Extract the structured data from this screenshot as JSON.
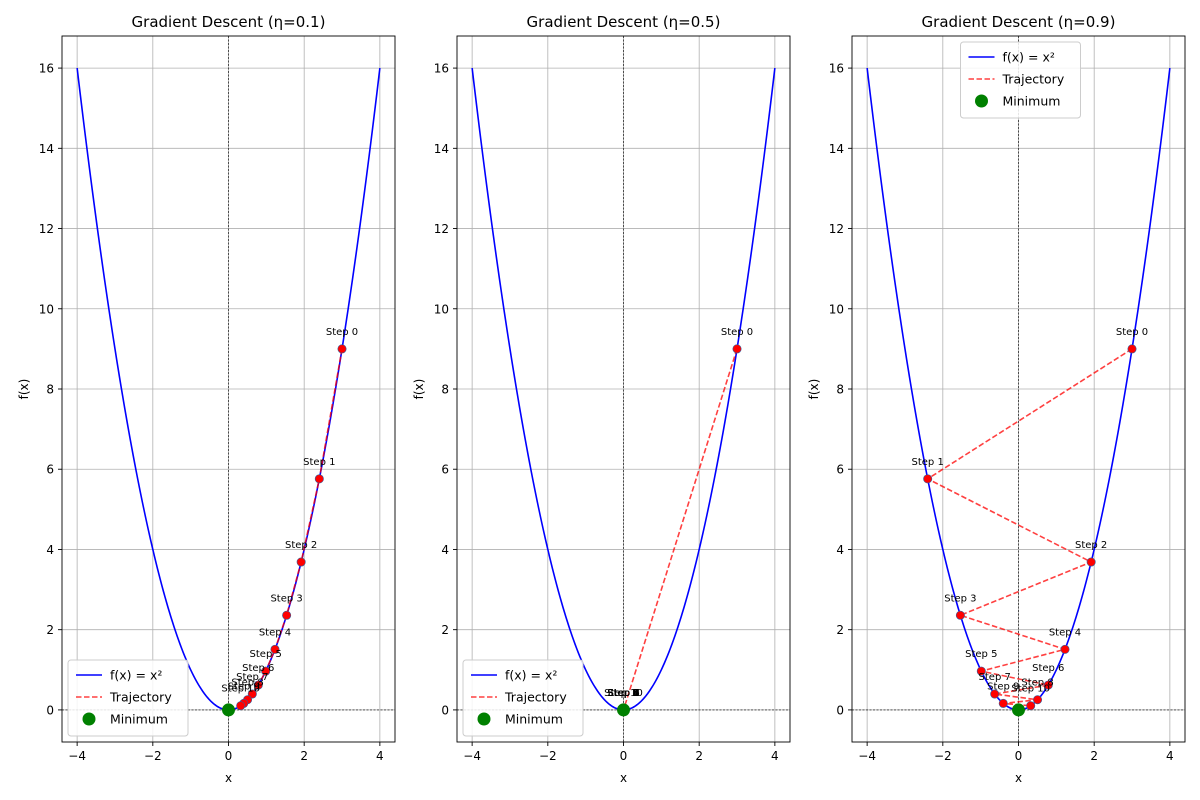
{
  "figure": {
    "background": "#ffffff"
  },
  "chart_data": [
    {
      "type": "line",
      "title": "Gradient Descent (η=0.1)",
      "xlabel": "x",
      "ylabel": "f(x)",
      "xlim": [
        -4.4,
        4.4
      ],
      "ylim": [
        -0.8,
        16.8
      ],
      "xticks": [
        -4,
        -2,
        0,
        2,
        4
      ],
      "yticks": [
        0,
        2,
        4,
        6,
        8,
        10,
        12,
        14,
        16
      ],
      "grid": true,
      "legend_position": "lower-left",
      "learning_rate": 0.1,
      "series": [
        {
          "name": "f(x) = x²",
          "kind": "curve",
          "function": "x^2",
          "domain": [
            -4,
            4
          ],
          "color": "#0000ff",
          "style": "solid"
        },
        {
          "name": "Trajectory",
          "kind": "trajectory",
          "color": "#ff0000",
          "style": "dashed",
          "x": [
            3.0,
            2.4,
            1.92,
            1.536,
            1.2288,
            0.98304,
            0.786432,
            0.629146,
            0.503316,
            0.402653,
            0.322123
          ],
          "y": [
            9.0,
            5.76,
            3.6864,
            2.3593,
            1.5099,
            0.9664,
            0.6185,
            0.3958,
            0.2533,
            0.1621,
            0.1038
          ],
          "labels": [
            "Step 0",
            "Step 1",
            "Step 2",
            "Step 3",
            "Step 4",
            "Step 5",
            "Step 6",
            "Step 7",
            "Step 8",
            "Step 9",
            "Step 10"
          ]
        },
        {
          "name": "Minimum",
          "kind": "point",
          "color": "#008000",
          "x": [
            0
          ],
          "y": [
            0
          ]
        }
      ]
    },
    {
      "type": "line",
      "title": "Gradient Descent (η=0.5)",
      "xlabel": "x",
      "ylabel": "f(x)",
      "xlim": [
        -4.4,
        4.4
      ],
      "ylim": [
        -0.8,
        16.8
      ],
      "xticks": [
        -4,
        -2,
        0,
        2,
        4
      ],
      "yticks": [
        0,
        2,
        4,
        6,
        8,
        10,
        12,
        14,
        16
      ],
      "grid": true,
      "legend_position": "lower-left",
      "learning_rate": 0.5,
      "series": [
        {
          "name": "f(x) = x²",
          "kind": "curve",
          "function": "x^2",
          "domain": [
            -4,
            4
          ],
          "color": "#0000ff",
          "style": "solid"
        },
        {
          "name": "Trajectory",
          "kind": "trajectory",
          "color": "#ff0000",
          "style": "dashed",
          "x": [
            3.0,
            0,
            0,
            0,
            0,
            0,
            0,
            0,
            0,
            0,
            0
          ],
          "y": [
            9.0,
            0,
            0,
            0,
            0,
            0,
            0,
            0,
            0,
            0,
            0
          ],
          "labels": [
            "Step 0",
            "Step 1",
            "Step 2",
            "Step 3",
            "Step 4",
            "Step 5",
            "Step 6",
            "Step 7",
            "Step 8",
            "Step 9",
            "Step 10"
          ]
        },
        {
          "name": "Minimum",
          "kind": "point",
          "color": "#008000",
          "x": [
            0
          ],
          "y": [
            0
          ]
        }
      ]
    },
    {
      "type": "line",
      "title": "Gradient Descent (η=0.9)",
      "xlabel": "x",
      "ylabel": "f(x)",
      "xlim": [
        -4.4,
        4.4
      ],
      "ylim": [
        -0.8,
        16.8
      ],
      "xticks": [
        -4,
        -2,
        0,
        2,
        4
      ],
      "yticks": [
        0,
        2,
        4,
        6,
        8,
        10,
        12,
        14,
        16
      ],
      "grid": true,
      "legend_position": "upper-center",
      "learning_rate": 0.9,
      "series": [
        {
          "name": "f(x) = x²",
          "kind": "curve",
          "function": "x^2",
          "domain": [
            -4,
            4
          ],
          "color": "#0000ff",
          "style": "solid"
        },
        {
          "name": "Trajectory",
          "kind": "trajectory",
          "color": "#ff0000",
          "style": "dashed",
          "x": [
            3.0,
            -2.4,
            1.92,
            -1.536,
            1.2288,
            -0.98304,
            0.786432,
            -0.629146,
            0.503316,
            -0.402653,
            0.322123
          ],
          "y": [
            9.0,
            5.76,
            3.6864,
            2.3593,
            1.5099,
            0.9664,
            0.6185,
            0.3958,
            0.2533,
            0.1621,
            0.1038
          ],
          "labels": [
            "Step 0",
            "Step 1",
            "Step 2",
            "Step 3",
            "Step 4",
            "Step 5",
            "Step 6",
            "Step 7",
            "Step 8",
            "Step 9",
            "Step 10"
          ]
        },
        {
          "name": "Minimum",
          "kind": "point",
          "color": "#008000",
          "x": [
            0
          ],
          "y": [
            0
          ]
        }
      ]
    }
  ]
}
